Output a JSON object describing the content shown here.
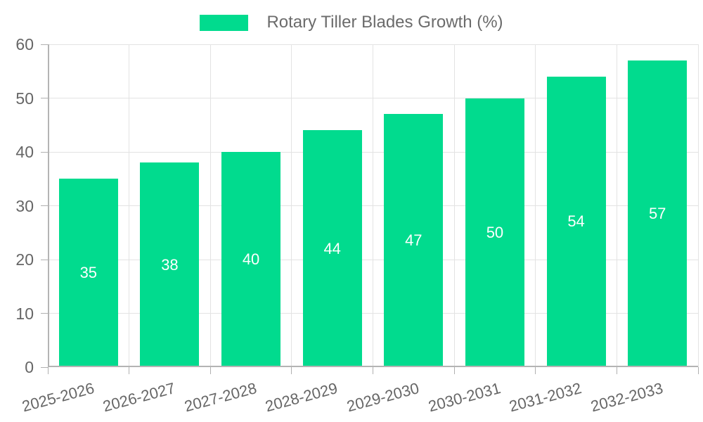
{
  "window": {
    "background": "#ffffff"
  },
  "colors": {
    "bar": "#01DB8E",
    "grid_line": "#e3e3e3",
    "axis_line": "#b4b4b4",
    "tick_mark": "#b0b0b0",
    "tick_label": "#666666",
    "bar_value_label": "#ffffff",
    "legend_text": "#6b6b6b"
  },
  "legend": {
    "label": "Rotary Tiller Blades Growth (%)",
    "position": "top"
  },
  "chart_data": {
    "type": "bar",
    "title": "",
    "xlabel": "",
    "ylabel": "",
    "categories": [
      "2025-2026",
      "2026-2027",
      "2027-2028",
      "2028-2029",
      "2029-2030",
      "2030-2031",
      "2031-2032",
      "2032-2033"
    ],
    "series": [
      {
        "name": "Rotary Tiller Blades Growth (%)",
        "values": [
          35,
          38,
          40,
          44,
          47,
          50,
          54,
          57
        ]
      }
    ],
    "value_labels_shown": true,
    "ylim": [
      0,
      60
    ],
    "yticks": [
      0,
      10,
      20,
      30,
      40,
      50,
      60
    ],
    "grid": true,
    "legend_position": "top",
    "x_tick_rotation_deg": -15
  }
}
